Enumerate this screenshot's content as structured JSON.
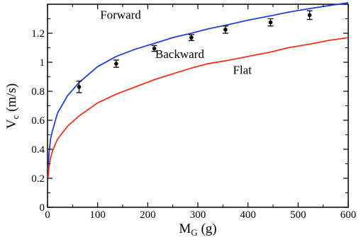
{
  "chart_data": {
    "type": "scatter",
    "xlabel": {
      "main": "M",
      "sub": "G",
      "unit": " (g)"
    },
    "ylabel": {
      "main": "V",
      "sub": "c",
      "unit": " (m/s)"
    },
    "xlim": [
      0,
      600
    ],
    "ylim": [
      0,
      1.4
    ],
    "xticks": [
      0,
      100,
      200,
      300,
      400,
      500,
      600
    ],
    "yticks": [
      0,
      0.2,
      0.4,
      0.6,
      0.8,
      1,
      1.2
    ],
    "xtick_labels": [
      "0",
      "100",
      "200",
      "300",
      "400",
      "500",
      "600"
    ],
    "ytick_labels": [
      "0",
      "0.2",
      "0.4",
      "0.6",
      "0.8",
      "1",
      "1.2"
    ],
    "grid": false,
    "annotations": [
      {
        "text": "Forward",
        "x": 105,
        "y": 1.3
      },
      {
        "text": "Backward",
        "x": 215,
        "y": 1.03
      },
      {
        "text": "Flat",
        "x": 370,
        "y": 0.92
      }
    ],
    "series": [
      {
        "kind": "points",
        "color": "#000000",
        "x": [
          63,
          137,
          213,
          287,
          355,
          445,
          523
        ],
        "y": [
          0.83,
          0.99,
          1.095,
          1.17,
          1.225,
          1.275,
          1.325
        ],
        "yerr": [
          0.04,
          0.025,
          0.02,
          0.02,
          0.025,
          0.025,
          0.03
        ]
      },
      {
        "kind": "curve",
        "color": "#1f3fe0",
        "x": [
          1,
          3,
          6,
          10,
          20,
          40,
          63,
          100,
          137,
          175,
          213,
          250,
          287,
          320,
          355,
          400,
          445,
          480,
          523,
          560,
          600
        ],
        "y": [
          0.26,
          0.37,
          0.47,
          0.53,
          0.65,
          0.77,
          0.86,
          0.97,
          1.04,
          1.09,
          1.13,
          1.17,
          1.2,
          1.23,
          1.255,
          1.29,
          1.32,
          1.345,
          1.37,
          1.39,
          1.41
        ]
      },
      {
        "kind": "curve",
        "color": "#ef3318",
        "x": [
          1,
          3,
          6,
          10,
          20,
          40,
          63,
          100,
          137,
          175,
          213,
          250,
          287,
          320,
          355,
          400,
          445,
          480,
          523,
          560,
          600
        ],
        "y": [
          0.2,
          0.28,
          0.34,
          0.39,
          0.47,
          0.56,
          0.63,
          0.72,
          0.78,
          0.83,
          0.88,
          0.92,
          0.96,
          0.99,
          1.01,
          1.04,
          1.07,
          1.1,
          1.125,
          1.15,
          1.17
        ]
      }
    ]
  }
}
